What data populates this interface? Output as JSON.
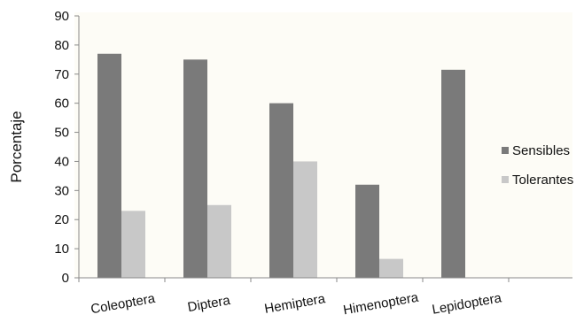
{
  "chart_data": {
    "type": "bar",
    "title": "",
    "xlabel": "",
    "ylabel": "Porcentaje",
    "ylim": [
      0,
      90
    ],
    "yticks": [
      0,
      10,
      20,
      30,
      40,
      50,
      60,
      70,
      80,
      90
    ],
    "grid": false,
    "legend_position": "right",
    "categories": [
      "Coleoptera",
      "Diptera",
      "Hemiptera",
      "Himenoptera",
      "Lepidoptera"
    ],
    "series": [
      {
        "name": "Sensibles",
        "color": "#7a7a7a",
        "values": [
          77,
          75,
          60,
          32,
          71.5
        ]
      },
      {
        "name": "Tolerantes",
        "color": "#c8c8c8",
        "values": [
          23,
          25,
          40,
          6.5,
          0
        ]
      }
    ]
  }
}
